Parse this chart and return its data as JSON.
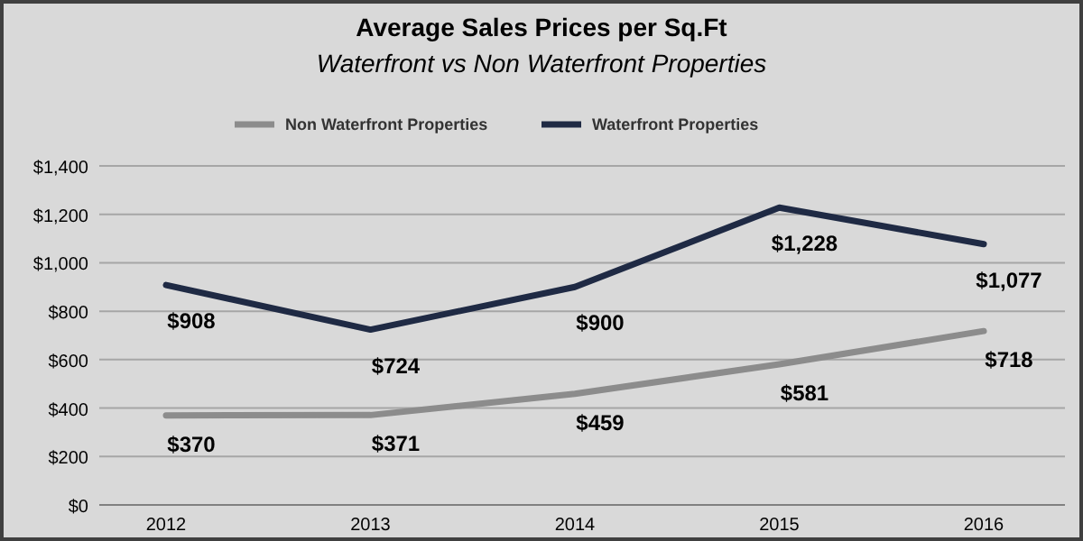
{
  "chart_data": {
    "type": "line",
    "title": "Average Sales Prices per Sq.Ft",
    "subtitle": "Waterfront vs Non Waterfront Properties",
    "categories": [
      "2012",
      "2013",
      "2014",
      "2015",
      "2016"
    ],
    "series": [
      {
        "name": "Non Waterfront Properties",
        "color": "#8c8c8c",
        "values": [
          370,
          371,
          459,
          581,
          718
        ],
        "value_labels": [
          "$370",
          "$371",
          "$459",
          "$581",
          "$718"
        ]
      },
      {
        "name": "Waterfront Properties",
        "color": "#1f2a44",
        "values": [
          908,
          724,
          900,
          1228,
          1077
        ],
        "value_labels": [
          "$908",
          "$724",
          "$900",
          "$1,228",
          "$1,077"
        ]
      }
    ],
    "ylim": [
      0,
      1400
    ],
    "yticks": [
      {
        "value": 0,
        "label": "$0"
      },
      {
        "value": 200,
        "label": "$200"
      },
      {
        "value": 400,
        "label": "$400"
      },
      {
        "value": 600,
        "label": "$600"
      },
      {
        "value": 800,
        "label": "$800"
      },
      {
        "value": 1000,
        "label": "$1,000"
      },
      {
        "value": 1200,
        "label": "$1,200"
      },
      {
        "value": 1400,
        "label": "$1,400"
      }
    ],
    "grid": "y",
    "legend": "top",
    "marker": "none",
    "line_style": "solid"
  }
}
